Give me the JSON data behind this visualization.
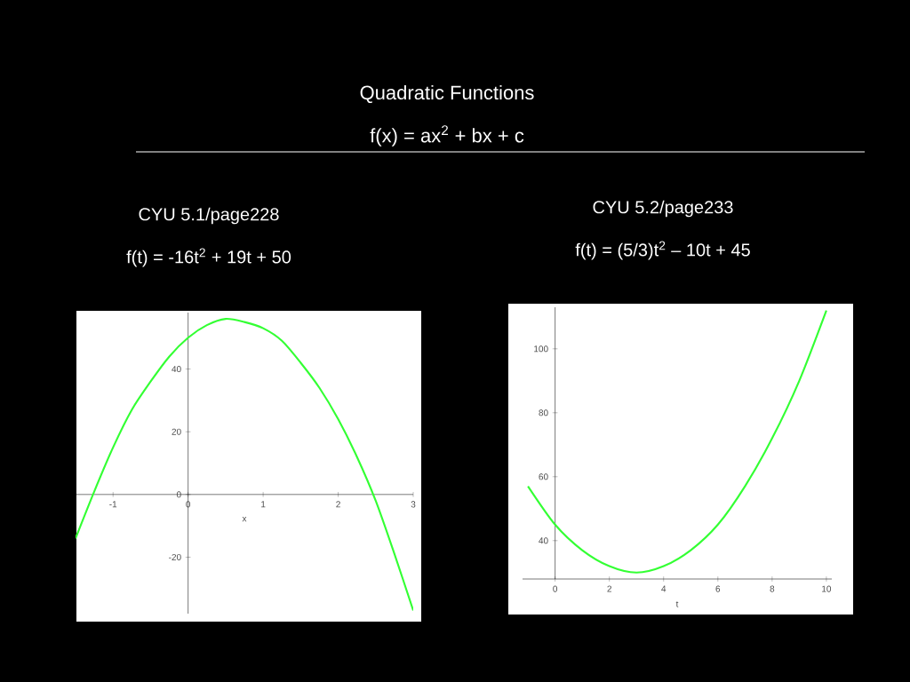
{
  "chart_data": [
    {
      "type": "other",
      "title": "Quadratic Functions",
      "subtitle": "f(x) = ax$^{2}$ + bx + c"
    },
    {
      "type": "line",
      "title": "CYU 5.1/page228",
      "subtitle": "f(t) = -16t$^{2}$ + 19t + 50",
      "xlabel": "x",
      "x": [
        -1.5,
        -1.25,
        -1,
        -0.75,
        -0.5,
        -0.25,
        0,
        0.25,
        0.5,
        0.75,
        1,
        1.25,
        1.5,
        1.75,
        2,
        2.25,
        2.5,
        2.75,
        3
      ],
      "values": [
        -14,
        1,
        15,
        27,
        36,
        44,
        50,
        54,
        56,
        55,
        53,
        49,
        42,
        34,
        24,
        12,
        -2,
        -19,
        -37
      ],
      "color": "#33ff33",
      "xlim": [
        -1.5,
        3
      ],
      "ylim": [
        -38,
        58
      ],
      "xticks": [
        -1,
        0,
        1,
        2,
        3
      ],
      "yticks": [
        -20,
        0,
        20,
        40
      ]
    },
    {
      "type": "line",
      "title": "CYU 5.2/page233",
      "subtitle": "f(t) = (5/3)t$^{2}$ – 10t + 45",
      "xlabel": "t",
      "x": [
        -1,
        0,
        1,
        2,
        3,
        4,
        5,
        6,
        7,
        8,
        9,
        10
      ],
      "values": [
        57,
        45,
        37,
        32,
        30,
        32,
        37,
        45,
        57,
        72,
        90,
        112
      ],
      "color": "#33ff33",
      "xlim": [
        -1.2,
        10.2
      ],
      "ylim": [
        28,
        113
      ],
      "xticks": [
        0,
        2,
        4,
        6,
        8,
        10
      ],
      "yticks": [
        40,
        60,
        80,
        100
      ]
    }
  ]
}
